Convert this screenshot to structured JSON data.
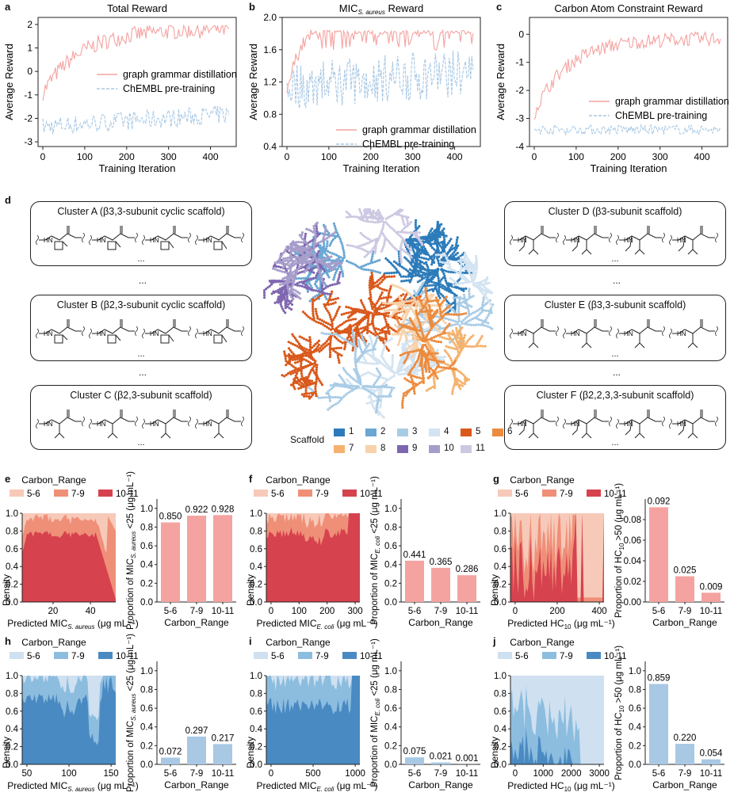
{
  "panel_labels": {
    "a": "a",
    "b": "b",
    "c": "c",
    "d": "d",
    "e": "e",
    "f": "f",
    "g": "g",
    "h": "h",
    "i": "i",
    "j": "j"
  },
  "colors": {
    "red": "#f4a3a1",
    "blue": "#a8c8e4",
    "red_light": "#f7c9b9",
    "red_mid": "#ef8f78",
    "red_dark": "#d6424e",
    "blue_light": "#cfe0f0",
    "blue_mid": "#8cbddf",
    "blue_dark": "#4a8ac2"
  },
  "top_panels": [
    {
      "id": "a",
      "title": "Total Reward",
      "ylabel": "Average Reward",
      "xlabel": "Training Iteration",
      "yticks": [
        "-3",
        "-2",
        "-1",
        "0",
        "1",
        "2"
      ],
      "xticks": [
        "0",
        "100",
        "200",
        "300",
        "400"
      ],
      "legend": [
        "graph grammar distillation",
        "ChEMBL pre-training"
      ]
    },
    {
      "id": "b",
      "title_main": "MIC",
      "title_sub": "S. aureus",
      "title_rest": " Reward",
      "ylabel": "Average Reward",
      "xlabel": "Training Iteration",
      "yticks": [
        "0.4",
        "0.8",
        "1.2",
        "1.6",
        "2.0"
      ],
      "xticks": [
        "0",
        "100",
        "200",
        "300",
        "400"
      ],
      "legend": [
        "graph grammar distillation",
        "ChEMBL pre-training"
      ]
    },
    {
      "id": "c",
      "title": "Carbon Atom Constraint Reward",
      "ylabel": "Average Reward",
      "xlabel": "Training Iteration",
      "yticks": [
        "-4",
        "-3",
        "-2",
        "-1",
        "0"
      ],
      "xticks": [
        "0",
        "100",
        "200",
        "300",
        "400"
      ],
      "legend": [
        "graph grammar distillation",
        "ChEMBL pre-training"
      ]
    }
  ],
  "clusters": [
    {
      "title": "Cluster A (β3,3-subunit cyclic scaffold)"
    },
    {
      "title": "Cluster B (β2,3-subunit cyclic scaffold)"
    },
    {
      "title": "Cluster C (β2,3-subunit scaffold)"
    },
    {
      "title": "Cluster D (β3-subunit scaffold)"
    },
    {
      "title": "Cluster E (β3,3-subunit scaffold)"
    },
    {
      "title": "Cluster F (β2,2,3,3-subunit scaffold)"
    }
  ],
  "scaffold_legend": {
    "title": "Scaffold",
    "items": [
      {
        "label": "1",
        "color": "#2b7bba"
      },
      {
        "label": "2",
        "color": "#6aa7d3"
      },
      {
        "label": "3",
        "color": "#a9cce6"
      },
      {
        "label": "4",
        "color": "#d3e3f1"
      },
      {
        "label": "5",
        "color": "#d9581a"
      },
      {
        "label": "6",
        "color": "#ec8b3d"
      },
      {
        "label": "7",
        "color": "#f5b26d"
      },
      {
        "label": "8",
        "color": "#f8d2ab"
      },
      {
        "label": "9",
        "color": "#7f66b0"
      },
      {
        "label": "10",
        "color": "#a79dcb"
      },
      {
        "label": "11",
        "color": "#cdc8e2"
      }
    ]
  },
  "carbon_legend": {
    "title": "Carbon_Range",
    "items": [
      "5-6",
      "7-9",
      "10-11"
    ]
  },
  "bar_panels": [
    {
      "id": "e",
      "density_xlabel_main": "Predicted MIC",
      "density_xlabel_sub": "S. aureus",
      "density_xlabel_unit": " (μg mL⁻¹)",
      "density_xticks": [
        "20",
        "40"
      ],
      "bar_ylabel": "Proportion of MIC",
      "bar_ysub": "S. aureus",
      "bar_yunit": " <25 (μg mL⁻¹)",
      "bar_yticks": [
        "0.0",
        "0.2",
        "0.4",
        "0.6",
        "0.8",
        "1.0"
      ],
      "values": [
        0.85,
        0.922,
        0.928
      ],
      "value_labels": [
        "0.850",
        "0.922",
        "0.928"
      ],
      "ymax": 1.1,
      "theme": "red"
    },
    {
      "id": "f",
      "density_xlabel_main": "Predicted MIC",
      "density_xlabel_sub": "E. coli",
      "density_xlabel_unit": " (μg mL⁻¹)",
      "density_xticks": [
        "0",
        "100",
        "200",
        "300"
      ],
      "bar_ylabel": "Proportion of MIC",
      "bar_ysub": "E. coli",
      "bar_yunit": " <25 (μg mL⁻¹)",
      "bar_yticks": [
        "0.0",
        "0.2",
        "0.4",
        "0.6",
        "0.8",
        "1.0"
      ],
      "values": [
        0.441,
        0.365,
        0.286
      ],
      "value_labels": [
        "0.441",
        "0.365",
        "0.286"
      ],
      "ymax": 1.1,
      "theme": "red"
    },
    {
      "id": "g",
      "density_xlabel_main": "Predicted HC",
      "density_xlabel_sub": "10",
      "density_xlabel_unit": " (μg mL⁻¹)",
      "density_xticks": [
        "0",
        "200",
        "400"
      ],
      "bar_ylabel": "Proportion of HC",
      "bar_ysub": "10",
      "bar_yunit": " >50 (μg mL⁻¹)",
      "bar_yticks": [
        "0.00",
        "0.02",
        "0.04",
        "0.06",
        "0.08"
      ],
      "values": [
        0.092,
        0.025,
        0.009
      ],
      "value_labels": [
        "0.092",
        "0.025",
        "0.009"
      ],
      "ymax": 0.1,
      "theme": "red"
    },
    {
      "id": "h",
      "density_xlabel_main": "Predicted MIC",
      "density_xlabel_sub": "S. aureus",
      "density_xlabel_unit": " (μg mL⁻¹)",
      "density_xticks": [
        "50",
        "100",
        "150"
      ],
      "bar_ylabel": "Proportion of MIC",
      "bar_ysub": "S. aureus",
      "bar_yunit": " <25 (μg mL⁻¹)",
      "bar_yticks": [
        "0.0",
        "0.2",
        "0.4",
        "0.6",
        "0.8",
        "1.0"
      ],
      "values": [
        0.072,
        0.297,
        0.217
      ],
      "value_labels": [
        "0.072",
        "0.297",
        "0.217"
      ],
      "ymax": 1.1,
      "theme": "blue"
    },
    {
      "id": "i",
      "density_xlabel_main": "Predicted MIC",
      "density_xlabel_sub": "E. coli",
      "density_xlabel_unit": " (μg mL⁻¹)",
      "density_xticks": [
        "0",
        "500",
        "1000"
      ],
      "bar_ylabel": "Proportion of MIC",
      "bar_ysub": "E. coli",
      "bar_yunit": " <25 (μg mL⁻¹)",
      "bar_yticks": [
        "0.0",
        "0.2",
        "0.4",
        "0.6",
        "0.8",
        "1.0"
      ],
      "values": [
        0.075,
        0.021,
        0.001
      ],
      "value_labels": [
        "0.075",
        "0.021",
        "0.001"
      ],
      "ymax": 1.1,
      "theme": "blue"
    },
    {
      "id": "j",
      "density_xlabel_main": "Predicted HC",
      "density_xlabel_sub": "10",
      "density_xlabel_unit": " (μg mL⁻¹)",
      "density_xticks": [
        "0",
        "1000",
        "2000",
        "3000"
      ],
      "bar_ylabel": "Proportion of HC",
      "bar_ysub": "10",
      "bar_yunit": " >50 (μg mL⁻¹)",
      "bar_yticks": [
        "0.0",
        "0.2",
        "0.4",
        "0.6",
        "0.8",
        "1.0"
      ],
      "values": [
        0.859,
        0.22,
        0.054
      ],
      "value_labels": [
        "0.859",
        "0.220",
        "0.054"
      ],
      "ymax": 1.1,
      "theme": "blue"
    }
  ],
  "density_ylabel": "Density",
  "density_yticks": [
    "0.0",
    "0.2",
    "0.4",
    "0.6",
    "0.8",
    "1.0"
  ],
  "bar_xlabel": "Carbon_Range",
  "bar_categories": [
    "5-6",
    "7-9",
    "10-11"
  ],
  "ellipsis": "..."
}
